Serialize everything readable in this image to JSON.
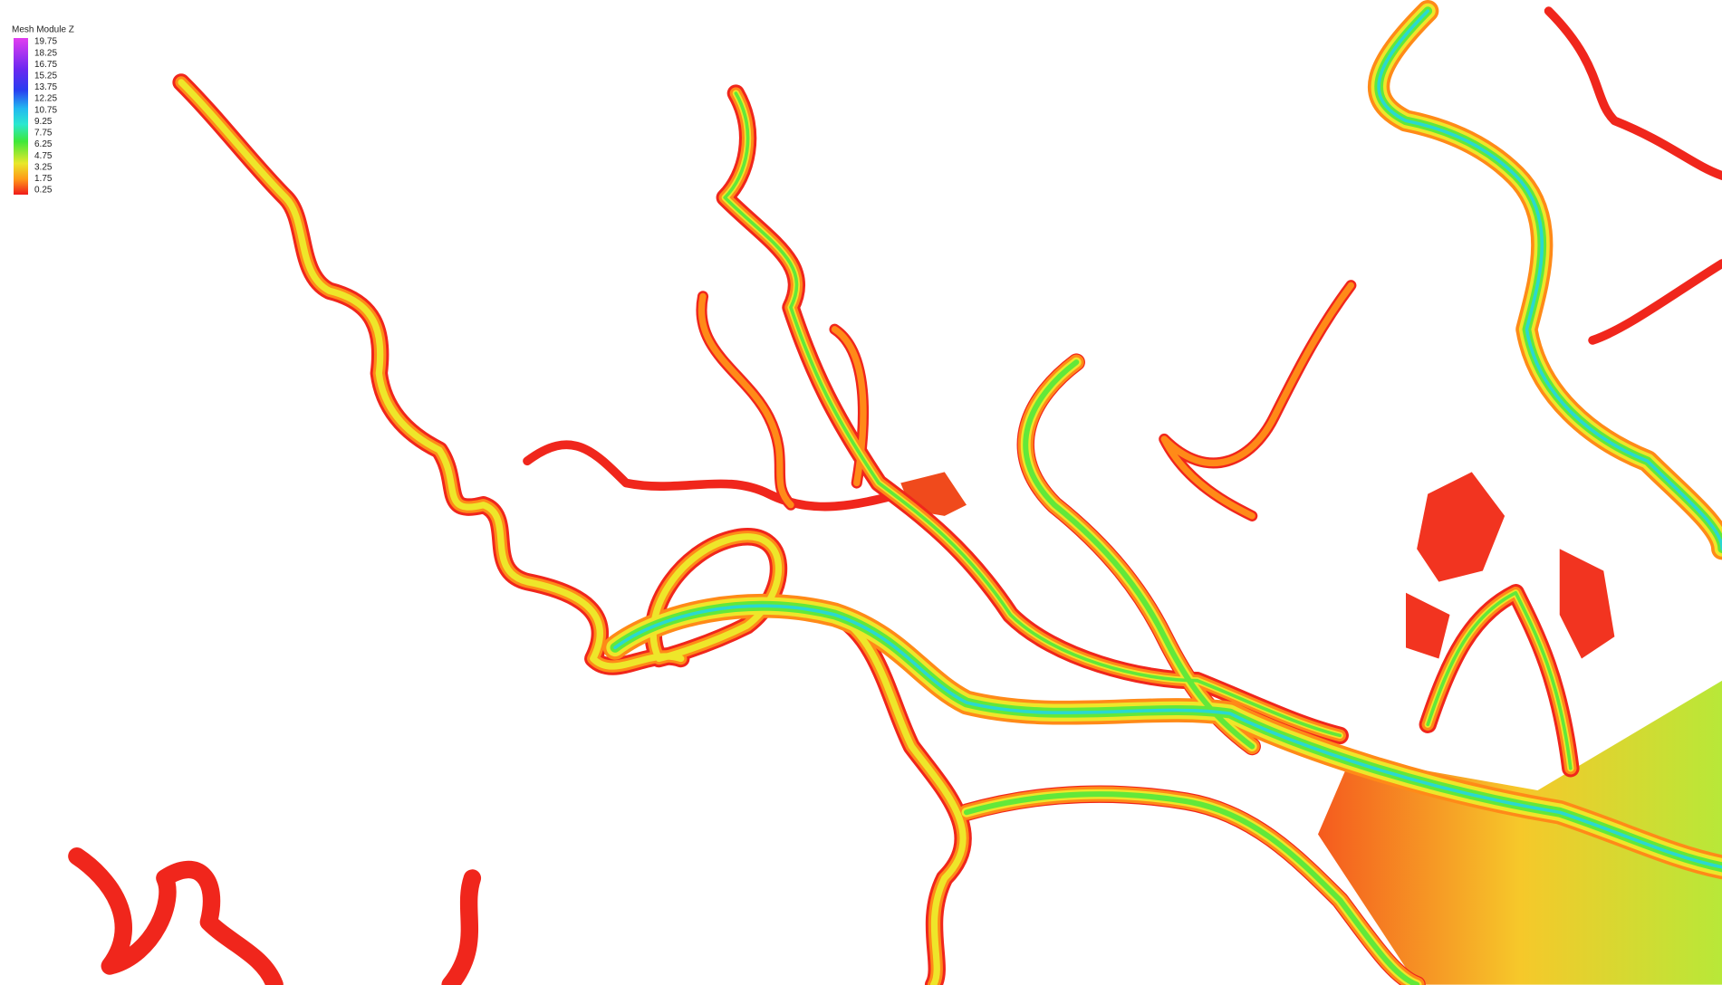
{
  "legend": {
    "title": "Mesh Module Z",
    "labels": [
      19.75,
      18.25,
      16.75,
      15.25,
      13.75,
      12.25,
      10.75,
      9.25,
      7.75,
      6.25,
      4.75,
      3.25,
      1.75,
      0.25
    ]
  }
}
